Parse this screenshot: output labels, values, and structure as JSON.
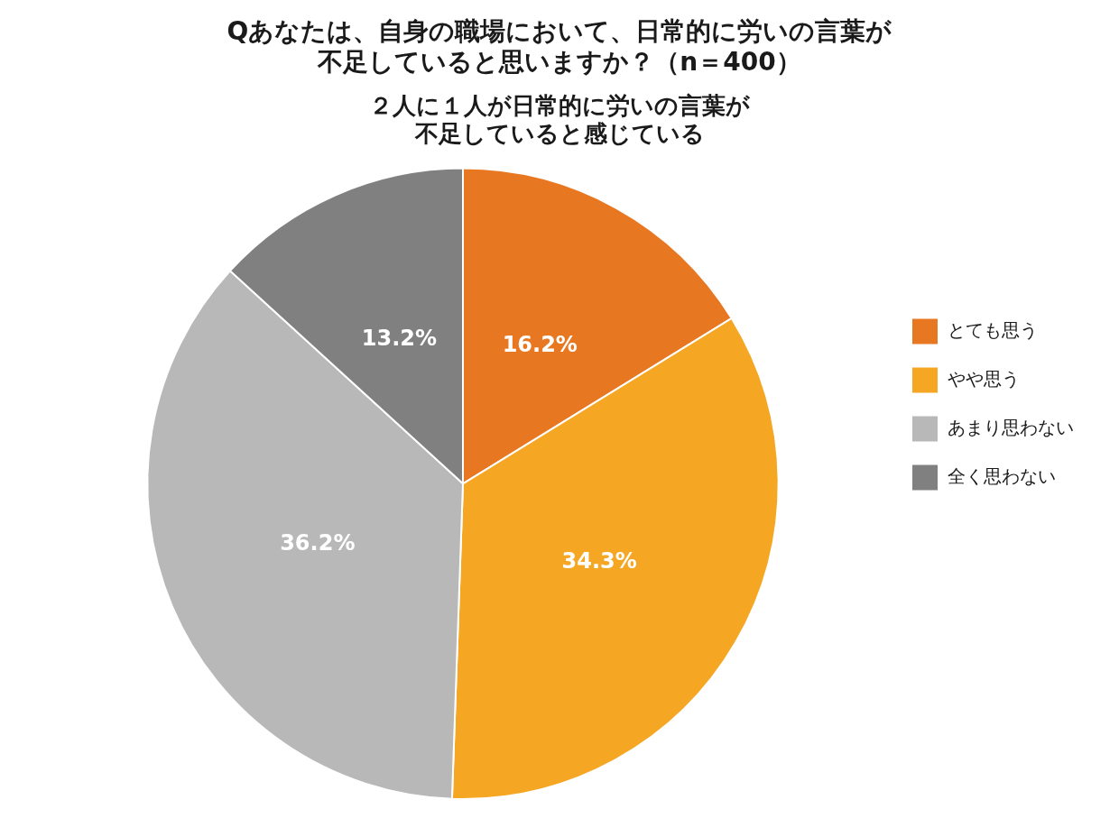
{
  "chart_data": {
    "type": "pie",
    "title": [
      "Qあなたは、自身の職場において、日常的に労いの言葉が",
      "不足していると思いますか？（n＝400）"
    ],
    "subtitle": [
      "２人に１人が日常的に労いの言葉が",
      "不足していると感じている"
    ],
    "categories": [
      "とても思う",
      "やや思う",
      "あまり思わない",
      "全く思わない"
    ],
    "values": [
      16.2,
      34.3,
      36.2,
      13.2
    ],
    "value_labels": [
      "16.2%",
      "34.3%",
      "36.2%",
      "13.2%"
    ],
    "colors": [
      "#e87722",
      "#f5a623",
      "#b8b8b8",
      "#808080"
    ],
    "data_labels": true,
    "legend": "right"
  }
}
